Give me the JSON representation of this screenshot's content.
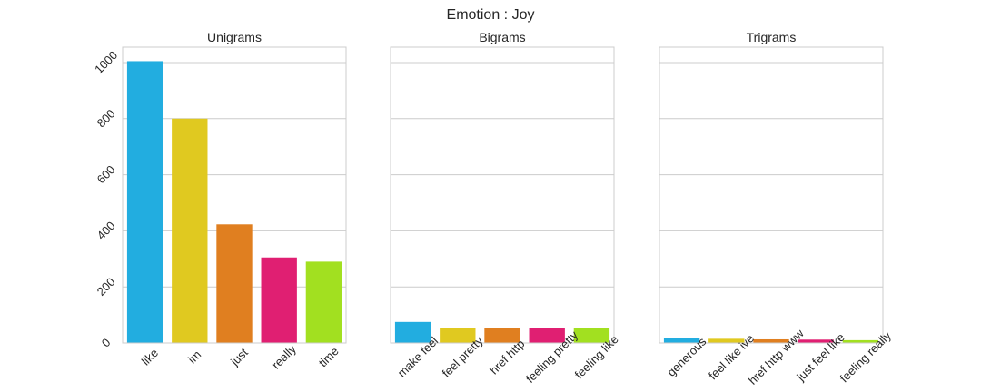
{
  "figure": {
    "title": "Emotion : Joy"
  },
  "palette": [
    "#22ade0",
    "#e0c920",
    "#e07f20",
    "#e01f72",
    "#a2e020"
  ],
  "style": {
    "background": "#ffffff",
    "grid_color": "#cccccc",
    "spine_color": "#cccccc",
    "text_color": "#262626"
  },
  "chart_data": [
    {
      "type": "bar",
      "title": "Unigrams",
      "categories": [
        "like",
        "im",
        "just",
        "really",
        "time"
      ],
      "values": [
        1005,
        800,
        423,
        305,
        290
      ],
      "xlabel": "",
      "ylabel": "",
      "ylim": [
        0,
        1055
      ],
      "yticks": [
        0,
        200,
        400,
        600,
        800,
        1000
      ],
      "grid": "horizontal"
    },
    {
      "type": "bar",
      "title": "Bigrams",
      "categories": [
        "make feel",
        "feel pretty",
        "href http",
        "feeling pretty",
        "feeling like"
      ],
      "values": [
        75,
        55,
        55,
        55,
        55
      ],
      "xlabel": "",
      "ylabel": "",
      "ylim": [
        0,
        1055
      ],
      "grid": "horizontal"
    },
    {
      "type": "bar",
      "title": "Trigrams",
      "categories": [
        "generous",
        "feel like ive",
        "href http www",
        "just feel like",
        "feeling really"
      ],
      "values": [
        17,
        15,
        13,
        12,
        10
      ],
      "xlabel": "",
      "ylabel": "",
      "ylim": [
        0,
        1055
      ],
      "grid": "horizontal"
    }
  ]
}
